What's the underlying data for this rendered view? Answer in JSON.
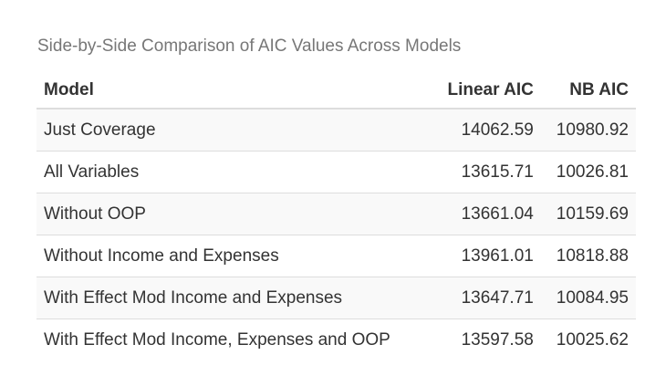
{
  "table": {
    "caption": "Side-by-Side Comparison of AIC Values Across Models",
    "headers": [
      "Model",
      "Linear AIC",
      "NB AIC"
    ],
    "rows": [
      [
        "Just Coverage",
        "14062.59",
        "10980.92"
      ],
      [
        "All Variables",
        "13615.71",
        "10026.81"
      ],
      [
        "Without OOP",
        "13661.04",
        "10159.69"
      ],
      [
        "Without Income and Expenses",
        "13961.01",
        "10818.88"
      ],
      [
        "With Effect Mod Income and Expenses",
        "13647.71",
        "10084.95"
      ],
      [
        "With Effect Mod Income, Expenses and OOP",
        "13597.58",
        "10025.62"
      ]
    ]
  }
}
